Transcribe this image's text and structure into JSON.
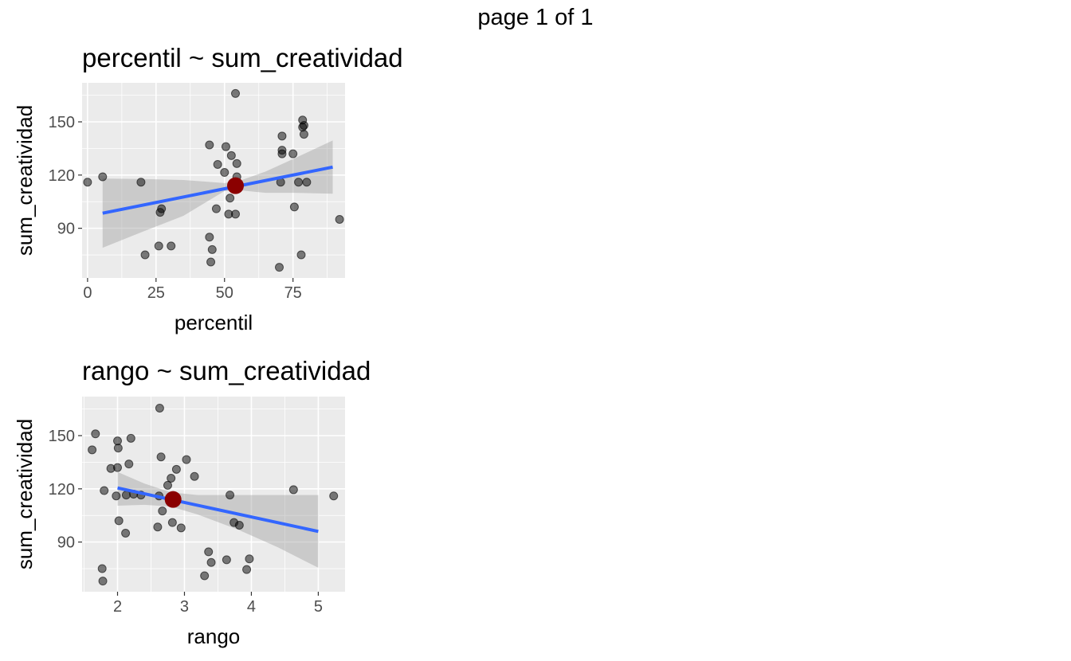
{
  "page": {
    "label": "page 1 of 1"
  },
  "chart_data": [
    {
      "type": "scatter",
      "title": "percentil ~ sum_creatividad",
      "xlabel": "percentil",
      "ylabel": "sum_creatividad",
      "xlim": [
        -2,
        94
      ],
      "ylim": [
        62,
        172
      ],
      "x_ticks": [
        0,
        25,
        50,
        75
      ],
      "y_ticks": [
        90,
        120,
        150
      ],
      "grid": true,
      "points": [
        [
          0,
          116
        ],
        [
          5.5,
          119
        ],
        [
          19.5,
          116
        ],
        [
          21,
          75
        ],
        [
          26,
          80
        ],
        [
          26.5,
          99
        ],
        [
          27,
          101
        ],
        [
          30.5,
          80
        ],
        [
          44.5,
          137
        ],
        [
          44.5,
          85
        ],
        [
          45,
          71
        ],
        [
          45.5,
          78
        ],
        [
          47,
          101
        ],
        [
          47.5,
          126
        ],
        [
          50,
          121.5
        ],
        [
          50.5,
          136
        ],
        [
          51.5,
          98
        ],
        [
          52,
          107
        ],
        [
          52.5,
          131
        ],
        [
          54,
          166
        ],
        [
          54,
          98
        ],
        [
          54.5,
          126.5
        ],
        [
          54.5,
          119
        ],
        [
          55,
          115
        ],
        [
          70,
          68
        ],
        [
          70.5,
          116
        ],
        [
          71,
          132
        ],
        [
          71,
          134
        ],
        [
          71,
          142
        ],
        [
          75,
          132
        ],
        [
          75.5,
          102
        ],
        [
          77,
          116
        ],
        [
          78,
          75
        ],
        [
          78.5,
          151
        ],
        [
          78.5,
          147
        ],
        [
          79,
          148
        ],
        [
          79,
          143
        ],
        [
          80,
          116
        ],
        [
          92,
          95
        ]
      ],
      "fit_line": {
        "x": [
          5.5,
          89.5
        ],
        "y": [
          98.5,
          124.5
        ]
      },
      "confidence_band": {
        "x": [
          5.5,
          20,
          35,
          50,
          55,
          65,
          75,
          89.5
        ],
        "upper": [
          118,
          117.8,
          117.2,
          115.5,
          116.5,
          122,
          129,
          139.5
        ],
        "lower": [
          79,
          88,
          97,
          111,
          111.5,
          110,
          110,
          109.5
        ]
      },
      "mean_point": [
        54,
        114
      ],
      "colors": {
        "points": "#000000",
        "fit": "#3366FF",
        "band": "#999999",
        "mean": "#8B0000"
      }
    },
    {
      "type": "scatter",
      "title": "rango ~ sum_creatividad",
      "xlabel": "rango",
      "ylabel": "sum_creatividad",
      "xlim": [
        1.47,
        5.4
      ],
      "ylim": [
        62,
        172
      ],
      "x_ticks": [
        2,
        3,
        4,
        5
      ],
      "y_ticks": [
        90,
        120,
        150
      ],
      "grid": true,
      "points": [
        [
          1.62,
          142
        ],
        [
          1.67,
          151
        ],
        [
          1.77,
          75
        ],
        [
          1.78,
          68
        ],
        [
          1.8,
          119
        ],
        [
          1.9,
          131.5
        ],
        [
          1.98,
          116
        ],
        [
          2.0,
          132
        ],
        [
          2.0,
          147
        ],
        [
          2.01,
          143
        ],
        [
          2.02,
          102
        ],
        [
          2.12,
          95
        ],
        [
          2.13,
          116.5
        ],
        [
          2.17,
          134
        ],
        [
          2.2,
          148.5
        ],
        [
          2.24,
          117
        ],
        [
          2.35,
          116.5
        ],
        [
          2.6,
          98.5
        ],
        [
          2.62,
          116
        ],
        [
          2.63,
          165.5
        ],
        [
          2.65,
          138
        ],
        [
          2.67,
          107.5
        ],
        [
          2.75,
          122
        ],
        [
          2.8,
          126
        ],
        [
          2.82,
          101
        ],
        [
          2.88,
          131
        ],
        [
          2.95,
          98
        ],
        [
          3.03,
          136.5
        ],
        [
          3.15,
          127
        ],
        [
          3.3,
          71
        ],
        [
          3.36,
          84.5
        ],
        [
          3.4,
          78.5
        ],
        [
          3.63,
          80
        ],
        [
          3.68,
          116.5
        ],
        [
          3.74,
          101
        ],
        [
          3.82,
          99.5
        ],
        [
          3.93,
          74.5
        ],
        [
          3.97,
          80.5
        ],
        [
          4.63,
          119.5
        ],
        [
          5.23,
          116
        ]
      ],
      "fit_line": {
        "x": [
          2.0,
          5.0
        ],
        "y": [
          120.5,
          96
        ]
      },
      "confidence_band": {
        "x": [
          2.0,
          2.4,
          2.8,
          3.2,
          3.8,
          4.4,
          5.0
        ],
        "upper": [
          129.5,
          123,
          118,
          116.5,
          116.5,
          116.5,
          116.5
        ],
        "lower": [
          110.5,
          111,
          110,
          105.5,
          97,
          87,
          75.5
        ]
      },
      "mean_point": [
        2.83,
        114
      ],
      "colors": {
        "points": "#000000",
        "fit": "#3366FF",
        "band": "#999999",
        "mean": "#8B0000"
      }
    }
  ]
}
